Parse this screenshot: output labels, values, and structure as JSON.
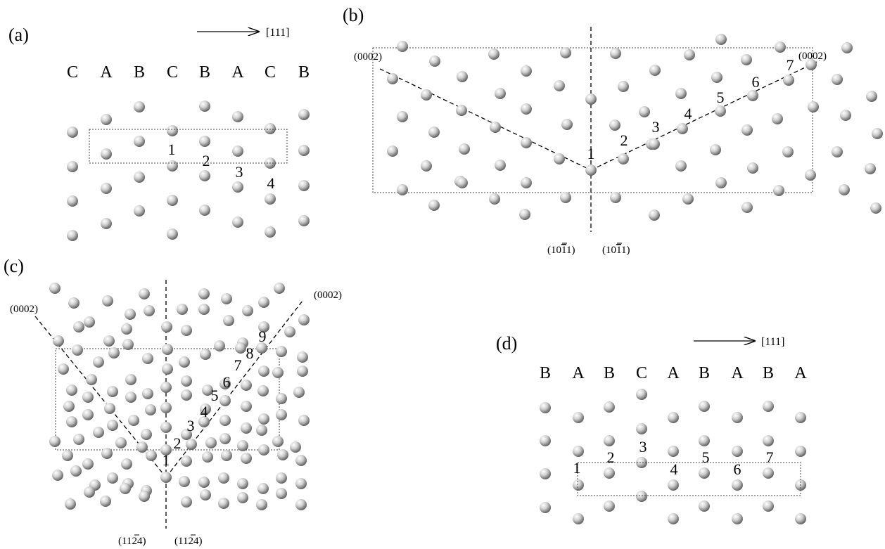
{
  "panels": {
    "a": {
      "label": "(a)",
      "direction": "[111]",
      "stacking": [
        "C",
        "A",
        "B",
        "C",
        "B",
        "A",
        "C",
        "B"
      ],
      "markers": [
        "1",
        "2",
        "3",
        "4"
      ]
    },
    "b": {
      "label": "(b)",
      "plane_left": "(0002)",
      "plane_right": "(0002)",
      "twin_left": "(10",
      "twin_left_bar": "1",
      "twin_left_end": "1)",
      "twin_right": "(10",
      "twin_right_bar": "1",
      "twin_right_end": "1)",
      "markers": [
        "1",
        "2",
        "3",
        "4",
        "5",
        "6",
        "7"
      ]
    },
    "c": {
      "label": "(c)",
      "plane_left": "(0002)",
      "plane_right": "(0002)",
      "twin_left": "(11",
      "twin_left_bar": "2",
      "twin_left_end": "4)",
      "twin_right": "(11",
      "twin_right_bar": "2",
      "twin_right_end": "4)",
      "markers": [
        "1",
        "2",
        "3",
        "4",
        "5",
        "6",
        "7",
        "8",
        "9"
      ]
    },
    "d": {
      "label": "(d)",
      "direction": "[111]",
      "stacking": [
        "B",
        "A",
        "B",
        "C",
        "A",
        "B",
        "A",
        "B",
        "A"
      ],
      "markers": [
        "1",
        "2",
        "3",
        "4",
        "5",
        "6",
        "7"
      ]
    }
  },
  "colors": {
    "atom_light": "#ffffff",
    "atom_mid": "#c8c8c8",
    "atom_dark": "#5a5a5a",
    "line": "#000000"
  }
}
